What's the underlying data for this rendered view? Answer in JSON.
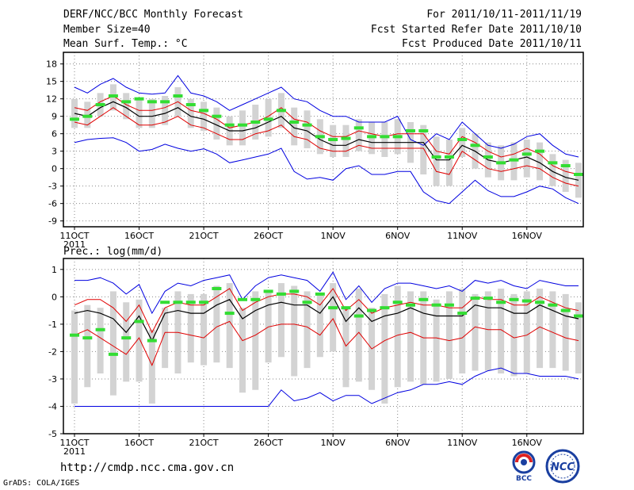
{
  "header": {
    "title": "DERF/NCC/BCC Monthly Forecast",
    "member_size": "Member Size=40",
    "variable1": "Mean Surf. Temp.: °C",
    "period": "For 2011/10/11-2011/11/19",
    "started": "Fcst Started Refer Date 2011/10/10",
    "produced": "Fcst Produced Date 2011/10/11"
  },
  "footer": {
    "url": "http://cmdp.ncc.cma.gov.cn",
    "grads": "GrADS: COLA/IGES"
  },
  "logos": {
    "bcc": "BCC",
    "ncc": "NCC"
  },
  "colors": {
    "mean": "#000000",
    "spread": "#e00000",
    "extreme": "#0000e0",
    "box": "#d3d3d3",
    "obs": "#33dd33"
  },
  "chart_data": [
    {
      "type": "box-line",
      "title": "Mean Surf. Temp.: °C",
      "x_tick_labels": [
        "11OCT",
        "16OCT",
        "21OCT",
        "26OCT",
        "1NOV",
        "6NOV",
        "11NOV",
        "16NOV"
      ],
      "x_tick_days": [
        1,
        6,
        11,
        16,
        21,
        26,
        31,
        36
      ],
      "x_sub_label": "2011",
      "ylim": [
        -10,
        20
      ],
      "y_ticks": [
        -9,
        -6,
        -3,
        0,
        3,
        6,
        9,
        12,
        15,
        18
      ],
      "days": [
        1,
        2,
        3,
        4,
        5,
        6,
        7,
        8,
        9,
        10,
        11,
        12,
        13,
        14,
        15,
        16,
        17,
        18,
        19,
        20,
        21,
        22,
        23,
        24,
        25,
        26,
        27,
        28,
        29,
        30,
        31,
        32,
        33,
        34,
        35,
        36,
        37,
        38,
        39,
        40
      ],
      "series": [
        {
          "name": "max",
          "values": [
            14,
            13,
            14.5,
            15.5,
            14,
            13,
            12.8,
            13,
            16,
            13,
            12.5,
            11.5,
            10,
            11,
            12,
            13,
            14,
            12,
            11.5,
            10,
            9,
            9,
            8,
            8,
            8,
            9,
            5,
            4,
            6,
            5,
            8,
            6,
            4,
            3.5,
            4.2,
            5.5,
            6,
            4,
            2.5,
            2
          ]
        },
        {
          "name": "upper",
          "values": [
            10.5,
            10,
            11.5,
            12.5,
            11,
            10,
            10,
            10.5,
            11.5,
            10,
            9.5,
            8.5,
            7,
            7.5,
            8,
            9,
            10.5,
            8.5,
            8,
            6.5,
            5.5,
            5.5,
            6.5,
            6,
            5.5,
            6,
            6,
            6,
            3,
            2.5,
            5.5,
            4.5,
            3,
            2,
            2.5,
            3.5,
            2.5,
            0.5,
            -0.5,
            -1
          ]
        },
        {
          "name": "mean",
          "values": [
            9.5,
            9,
            10.5,
            11.5,
            10.5,
            9,
            9,
            9.5,
            10.5,
            9,
            8.5,
            7.5,
            6.5,
            6.5,
            7,
            8,
            9,
            7,
            6.5,
            5,
            4,
            4,
            5,
            4.5,
            4.5,
            4.5,
            4.5,
            4.5,
            1.5,
            1.5,
            4,
            3,
            1.5,
            1,
            1.5,
            2,
            1,
            -0.5,
            -1.5,
            -2
          ]
        },
        {
          "name": "lower",
          "values": [
            8,
            7.5,
            9,
            10.5,
            9,
            7.5,
            7.5,
            8,
            9,
            7.5,
            7,
            6,
            5,
            5,
            6,
            6.5,
            7.5,
            5.5,
            5,
            3.5,
            3,
            3,
            4,
            3.5,
            3.5,
            3.5,
            3.5,
            3.5,
            -0.5,
            -1,
            3,
            1.5,
            0,
            -0.5,
            0,
            0.5,
            0,
            -1.5,
            -2.5,
            -3
          ]
        },
        {
          "name": "min",
          "values": [
            4.5,
            5,
            5.2,
            5.3,
            4.5,
            3,
            3.3,
            4.2,
            3.5,
            3,
            3.4,
            2.5,
            1,
            1.5,
            2,
            2.5,
            3.5,
            -0.5,
            -1.8,
            -1.5,
            -2,
            0,
            0.5,
            -1,
            -1,
            -0.5,
            -0.5,
            -4,
            -5.5,
            -6,
            -4,
            -2,
            -3.8,
            -4.8,
            -4.8,
            -4,
            -3,
            -3.5,
            -5,
            -6
          ]
        },
        {
          "name": "box_low",
          "values": [
            7,
            7,
            9,
            10,
            8.5,
            7,
            7,
            7.5,
            9,
            7,
            6.5,
            5,
            4,
            4,
            5,
            5.5,
            7,
            4,
            3.5,
            2.5,
            2,
            2,
            3,
            2.5,
            2,
            2.5,
            1,
            -1,
            -3,
            -3,
            2,
            0,
            -1.5,
            -2,
            -2,
            -1.5,
            -2,
            -3,
            -4,
            -5
          ]
        },
        {
          "name": "box_high",
          "values": [
            12,
            11.5,
            13,
            14.5,
            13,
            12,
            12,
            12.5,
            14,
            12,
            11.5,
            10.5,
            9,
            10,
            11,
            12,
            13,
            10.5,
            10,
            8.5,
            7.5,
            7.5,
            8.5,
            8,
            8,
            8.5,
            8,
            7.5,
            5.5,
            5,
            7,
            6,
            4.5,
            4,
            4.5,
            5,
            4.5,
            2.5,
            1.5,
            1
          ]
        },
        {
          "name": "obs",
          "values": [
            8.5,
            9,
            11,
            12.5,
            11.5,
            12,
            11.5,
            11.5,
            12.5,
            11,
            10,
            9,
            7.5,
            7.5,
            8,
            8.5,
            10,
            8,
            7.5,
            5.5,
            5,
            5.2,
            7,
            5.5,
            5.5,
            5.5,
            6.5,
            6.5,
            2,
            2,
            5,
            4,
            2,
            1,
            1.5,
            2.5,
            3,
            1,
            0.5,
            -1
          ]
        }
      ]
    },
    {
      "type": "box-line",
      "title": "Prec.: log(mm/d)",
      "x_tick_labels": [
        "11OCT",
        "16OCT",
        "21OCT",
        "26OCT",
        "1NOV",
        "6NOV",
        "11NOV",
        "16NOV"
      ],
      "x_tick_days": [
        1,
        6,
        11,
        16,
        21,
        26,
        31,
        36
      ],
      "x_sub_label": "2011",
      "ylim": [
        -5,
        1.4
      ],
      "y_ticks": [
        -5,
        -4,
        -3,
        -2,
        -1,
        0,
        1
      ],
      "days": [
        1,
        2,
        3,
        4,
        5,
        6,
        7,
        8,
        9,
        10,
        11,
        12,
        13,
        14,
        15,
        16,
        17,
        18,
        19,
        20,
        21,
        22,
        23,
        24,
        25,
        26,
        27,
        28,
        29,
        30,
        31,
        32,
        33,
        34,
        35,
        36,
        37,
        38,
        39,
        40
      ],
      "series": [
        {
          "name": "max",
          "values": [
            0.6,
            0.6,
            0.7,
            0.5,
            0.1,
            0.45,
            -0.6,
            0.2,
            0.5,
            0.4,
            0.6,
            0.7,
            0.8,
            -0.1,
            0.4,
            0.7,
            0.8,
            0.7,
            0.6,
            0.2,
            0.9,
            -0.1,
            0.4,
            -0.2,
            0.3,
            0.5,
            0.5,
            0.4,
            0.3,
            0.4,
            0.2,
            0.6,
            0.5,
            0.6,
            0.4,
            0.3,
            0.6,
            0.5,
            0.4,
            0.4
          ]
        },
        {
          "name": "upper",
          "values": [
            -0.3,
            -0.1,
            -0.1,
            -0.4,
            -0.9,
            -0.3,
            -1.3,
            -0.4,
            -0.2,
            -0.3,
            -0.3,
            0,
            0.3,
            -0.5,
            -0.2,
            0,
            0.1,
            0.1,
            0,
            -0.3,
            0.3,
            -0.5,
            -0.1,
            -0.6,
            -0.4,
            -0.3,
            -0.2,
            -0.3,
            -0.3,
            -0.4,
            -0.4,
            0,
            -0.1,
            -0.1,
            -0.3,
            -0.3,
            0,
            -0.2,
            -0.4,
            -0.5
          ]
        },
        {
          "name": "mean",
          "values": [
            -0.6,
            -0.5,
            -0.6,
            -0.8,
            -1.3,
            -0.7,
            -1.6,
            -0.6,
            -0.5,
            -0.6,
            -0.6,
            -0.3,
            -0.1,
            -0.8,
            -0.5,
            -0.3,
            -0.2,
            -0.3,
            -0.3,
            -0.6,
            0,
            -0.9,
            -0.4,
            -0.9,
            -0.7,
            -0.6,
            -0.4,
            -0.6,
            -0.7,
            -0.7,
            -0.7,
            -0.3,
            -0.4,
            -0.4,
            -0.6,
            -0.6,
            -0.3,
            -0.5,
            -0.7,
            -0.8
          ]
        },
        {
          "name": "lower",
          "values": [
            -1.4,
            -1.2,
            -1.5,
            -1.8,
            -2.1,
            -1.5,
            -2.5,
            -1.3,
            -1.3,
            -1.4,
            -1.5,
            -1.1,
            -0.9,
            -1.6,
            -1.4,
            -1.1,
            -1,
            -1,
            -1.1,
            -1.4,
            -0.8,
            -1.8,
            -1.3,
            -1.9,
            -1.6,
            -1.4,
            -1.3,
            -1.5,
            -1.5,
            -1.6,
            -1.5,
            -1.1,
            -1.2,
            -1.2,
            -1.5,
            -1.4,
            -1.1,
            -1.3,
            -1.5,
            -1.6
          ]
        },
        {
          "name": "min",
          "values": [
            -4,
            -4,
            -4,
            -4,
            -4,
            -4,
            -4,
            -4,
            -4,
            -4,
            -4,
            -4,
            -4,
            -4,
            -4,
            -4,
            -3.4,
            -3.8,
            -3.7,
            -3.5,
            -3.8,
            -3.6,
            -3.6,
            -3.9,
            -3.7,
            -3.5,
            -3.4,
            -3.2,
            -3.2,
            -3.1,
            -3.2,
            -2.9,
            -2.7,
            -2.6,
            -2.8,
            -2.8,
            -2.9,
            -2.9,
            -2.9,
            -3
          ]
        },
        {
          "name": "box_low",
          "values": [
            -3.9,
            -3.3,
            -2.8,
            -3.6,
            -3.1,
            -3.1,
            -3.9,
            -2.6,
            -2.8,
            -2.4,
            -2.5,
            -2.4,
            -2.6,
            -3.5,
            -3.4,
            -2.4,
            -2.2,
            -2.9,
            -2.6,
            -2.2,
            -2,
            -3.3,
            -3.1,
            -3.4,
            -3.9,
            -3.3,
            -3.1,
            -3.2,
            -3.1,
            -3.0,
            -2.8,
            -2.7,
            -2.7,
            -2.8,
            -2.9,
            -2.8,
            -2.6,
            -2.6,
            -2.7,
            -2.8
          ]
        },
        {
          "name": "box_high",
          "values": [
            -0.5,
            -0.3,
            -0.4,
            0.2,
            -0.2,
            -0.1,
            -1.2,
            -0.4,
            0.2,
            0.1,
            0.1,
            0.4,
            0.5,
            -0.4,
            0.2,
            0.2,
            0.5,
            0.4,
            0.2,
            0.1,
            0.5,
            -0.4,
            0.3,
            -0.4,
            0.1,
            0.4,
            0.2,
            0.2,
            -0.1,
            0.2,
            0.3,
            0.1,
            0.2,
            0.3,
            0.1,
            0.2,
            0.3,
            0.2,
            0.1,
            -0.2
          ]
        },
        {
          "name": "obs",
          "values": [
            -1.4,
            -1.5,
            -1.2,
            -2.1,
            -1.5,
            -0.9,
            -1.6,
            -0.2,
            -0.2,
            -0.2,
            -0.2,
            0.3,
            -0.6,
            -0.1,
            -0.1,
            0.2,
            0.1,
            0.2,
            -0.2,
            0.1,
            -0.4,
            -0.4,
            -0.7,
            -0.5,
            -0.4,
            -0.2,
            -0.3,
            -0.1,
            -0.3,
            -0.3,
            -0.6,
            -0.05,
            -0.05,
            -0.2,
            -0.1,
            -0.15,
            -0.2,
            -0.3,
            -0.5,
            -0.7
          ]
        }
      ]
    }
  ]
}
